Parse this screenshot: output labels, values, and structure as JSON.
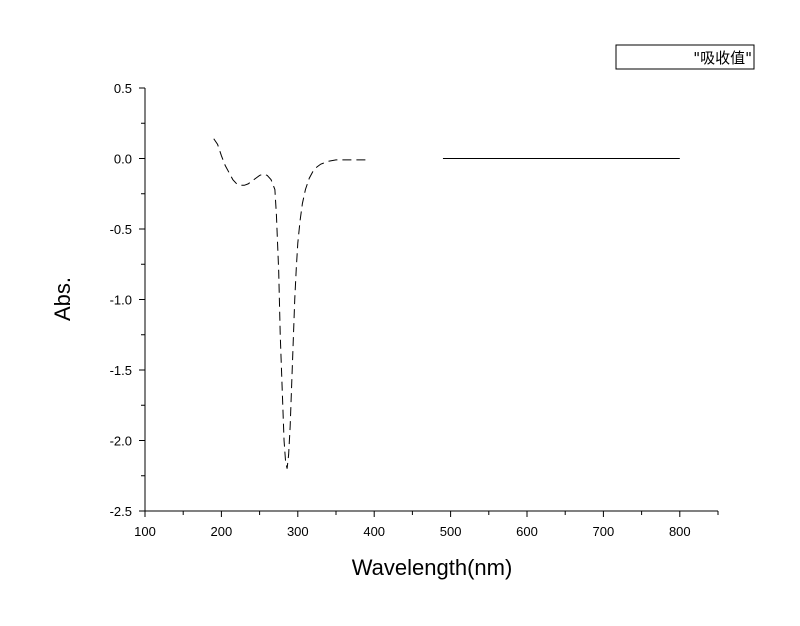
{
  "chart_data": {
    "type": "line",
    "title": "",
    "xlabel": "Wavelength(nm)",
    "ylabel": "Abs.",
    "xlim": [
      100,
      850
    ],
    "ylim": [
      -2.5,
      0.5
    ],
    "x_ticks": [
      "100",
      "200",
      "300",
      "400",
      "500",
      "600",
      "700",
      "800"
    ],
    "y_ticks": [
      "0.5",
      "0.0",
      "-0.5",
      "-1.0",
      "-1.5",
      "-2.0",
      "-2.5"
    ],
    "legend": {
      "position": "top-right",
      "entries": [
        "\"吸收值\""
      ]
    },
    "series": [
      {
        "name": "\"吸收值\"",
        "color": "#000000",
        "segments": [
          {
            "style": "dashed",
            "x": [
              190,
              195,
              200,
              205,
              210,
              215,
              220,
              225,
              230,
              235,
              240,
              245,
              250,
              255,
              260,
              265,
              270,
              272,
              275,
              277,
              280,
              282,
              284,
              286,
              288,
              290,
              292,
              294,
              296,
              298,
              300,
              303,
              306,
              310,
              315,
              320,
              325,
              330,
              335,
              340,
              350,
              360,
              370,
              380,
              390,
              395
            ],
            "y": [
              0.14,
              0.1,
              0.02,
              -0.05,
              -0.1,
              -0.15,
              -0.18,
              -0.19,
              -0.19,
              -0.18,
              -0.16,
              -0.14,
              -0.12,
              -0.11,
              -0.12,
              -0.15,
              -0.22,
              -0.4,
              -0.8,
              -1.25,
              -1.7,
              -2.0,
              -2.15,
              -2.2,
              -2.1,
              -1.9,
              -1.6,
              -1.3,
              -1.0,
              -0.78,
              -0.6,
              -0.44,
              -0.32,
              -0.22,
              -0.14,
              -0.09,
              -0.06,
              -0.04,
              -0.03,
              -0.02,
              -0.01,
              -0.01,
              -0.01,
              -0.01,
              -0.01,
              -0.01
            ]
          },
          {
            "style": "solid",
            "x": [
              490,
              800
            ],
            "y": [
              0.0,
              0.0
            ]
          }
        ]
      }
    ]
  }
}
